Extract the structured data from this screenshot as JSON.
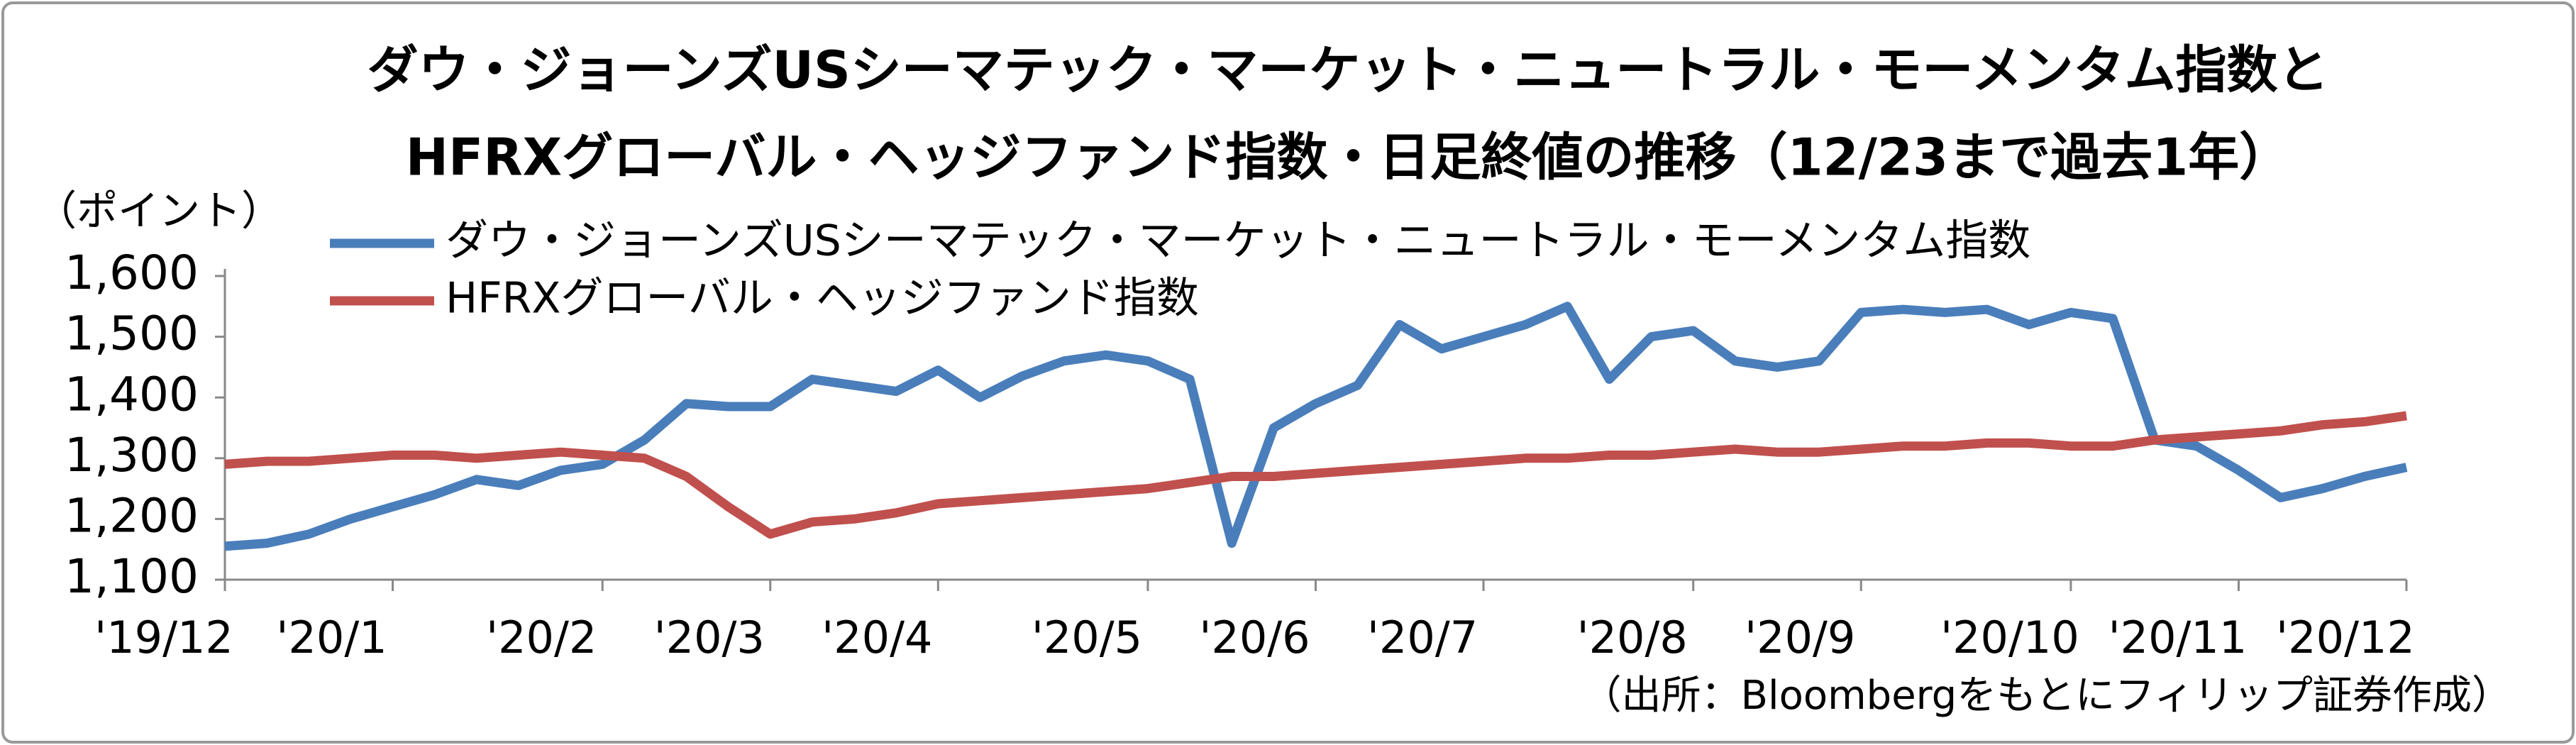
{
  "chart_data": {
    "type": "line",
    "title": "ダウ・ジョーンズUSシーマテック・マーケット・ニュートラル・モーメンタム指数と",
    "subtitle": "HFRXグローバル・ヘッジファンド指数・日足終値の推移（12/23まで過去1年）",
    "y_label": "（ポイント）",
    "source": "（出所：Bloombergをもとにフィリップ証券作成）",
    "categories": [
      "'19/12",
      null,
      null,
      null,
      "'20/1",
      null,
      null,
      null,
      null,
      "'20/2",
      null,
      null,
      null,
      "'20/3",
      null,
      null,
      null,
      "'20/4",
      null,
      null,
      null,
      null,
      "'20/5",
      null,
      null,
      null,
      "'20/6",
      null,
      null,
      null,
      "'20/7",
      null,
      null,
      null,
      null,
      "'20/8",
      null,
      null,
      null,
      "'20/9",
      null,
      null,
      null,
      null,
      "'20/10",
      null,
      null,
      null,
      "'20/11",
      null,
      null,
      null,
      "'20/12"
    ],
    "series": [
      {
        "name": "ダウ・ジョーンズUSシーマテック・マーケット・ニュートラル・モーメンタム指数",
        "color": "#4a7ebb",
        "values": [
          1155,
          1160,
          1175,
          1200,
          1220,
          1240,
          1265,
          1255,
          1280,
          1290,
          1330,
          1390,
          1385,
          1385,
          1430,
          1420,
          1410,
          1445,
          1400,
          1435,
          1460,
          1470,
          1460,
          1430,
          1160,
          1350,
          1390,
          1420,
          1520,
          1480,
          1500,
          1520,
          1550,
          1430,
          1500,
          1510,
          1460,
          1450,
          1460,
          1540,
          1545,
          1540,
          1545,
          1520,
          1540,
          1530,
          1330,
          1320,
          1280,
          1235,
          1250,
          1270,
          1285
        ]
      },
      {
        "name": "HFRXグローバル・ヘッジファンド指数",
        "color": "#c0504d",
        "values": [
          1290,
          1295,
          1295,
          1300,
          1305,
          1305,
          1300,
          1305,
          1310,
          1305,
          1300,
          1270,
          1220,
          1175,
          1195,
          1200,
          1210,
          1225,
          1230,
          1235,
          1240,
          1245,
          1250,
          1260,
          1270,
          1270,
          1275,
          1280,
          1285,
          1290,
          1295,
          1300,
          1300,
          1305,
          1305,
          1310,
          1315,
          1310,
          1310,
          1315,
          1320,
          1320,
          1325,
          1325,
          1320,
          1320,
          1330,
          1335,
          1340,
          1345,
          1355,
          1360,
          1370
        ]
      }
    ],
    "ylim": [
      1100,
      1600
    ],
    "yticks": [
      {
        "value": 1100,
        "label": "1,100"
      },
      {
        "value": 1200,
        "label": "1,200"
      },
      {
        "value": 1300,
        "label": "1,300"
      },
      {
        "value": 1400,
        "label": "1,400"
      },
      {
        "value": 1500,
        "label": "1,500"
      },
      {
        "value": 1600,
        "label": "1,600"
      }
    ],
    "grid": false,
    "legend": "top-left"
  }
}
